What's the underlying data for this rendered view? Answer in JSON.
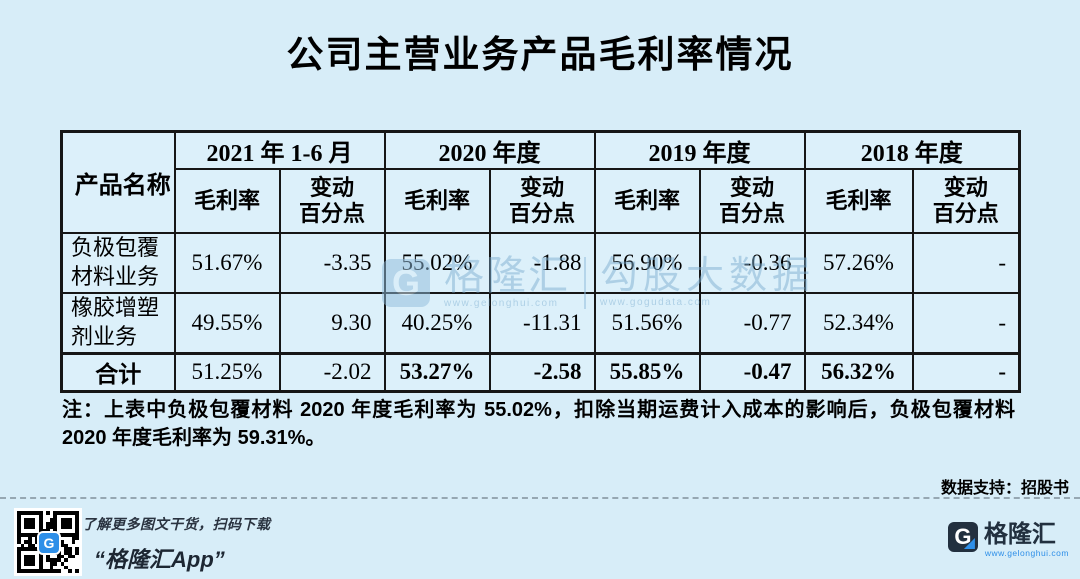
{
  "title": "公司主营业务产品毛利率情况",
  "table": {
    "corner": "产品名称",
    "periods": [
      "2021 年 1-6 月",
      "2020 年度",
      "2019 年度",
      "2018 年度"
    ],
    "sub_margin": "毛利率",
    "sub_change_l1": "变动",
    "sub_change_l2": "百分点",
    "rows": [
      {
        "name": "负极包覆材料业务",
        "values": [
          "51.67%",
          "-3.35",
          "55.02%",
          "-1.88",
          "56.90%",
          "-0.36",
          "57.26%",
          "-"
        ]
      },
      {
        "name": "橡胶增塑剂业务",
        "values": [
          "49.55%",
          "9.30",
          "40.25%",
          "-11.31",
          "51.56%",
          "-0.77",
          "52.34%",
          "-"
        ]
      }
    ],
    "total": {
      "name": "合计",
      "values": [
        "51.25%",
        "-2.02",
        "53.27%",
        "-2.58",
        "55.85%",
        "-0.47",
        "56.32%",
        "-"
      ]
    }
  },
  "note": "注：上表中负极包覆材料 2020 年度毛利率为 55.02%，扣除当期运费计入成本的影响后，负极包覆材料 2020 年度毛利率为 59.31%。",
  "source": "数据支持：招股书",
  "watermark": {
    "brand": "格隆汇",
    "brand_url": "www.gelonghui.com",
    "data_name": "勾股大数据",
    "data_url": "www.gogudata.com"
  },
  "footer": {
    "caption": "了解更多图文干货，扫码下载",
    "app_name": "“格隆汇App”",
    "brand": "格隆汇",
    "brand_url": "www.gelonghui.com"
  },
  "colors": {
    "background": "#d7edf8",
    "cell": "#dcf0fa",
    "border": "#161616",
    "accent_blue": "#2e8fe8",
    "navy": "#22303f"
  }
}
